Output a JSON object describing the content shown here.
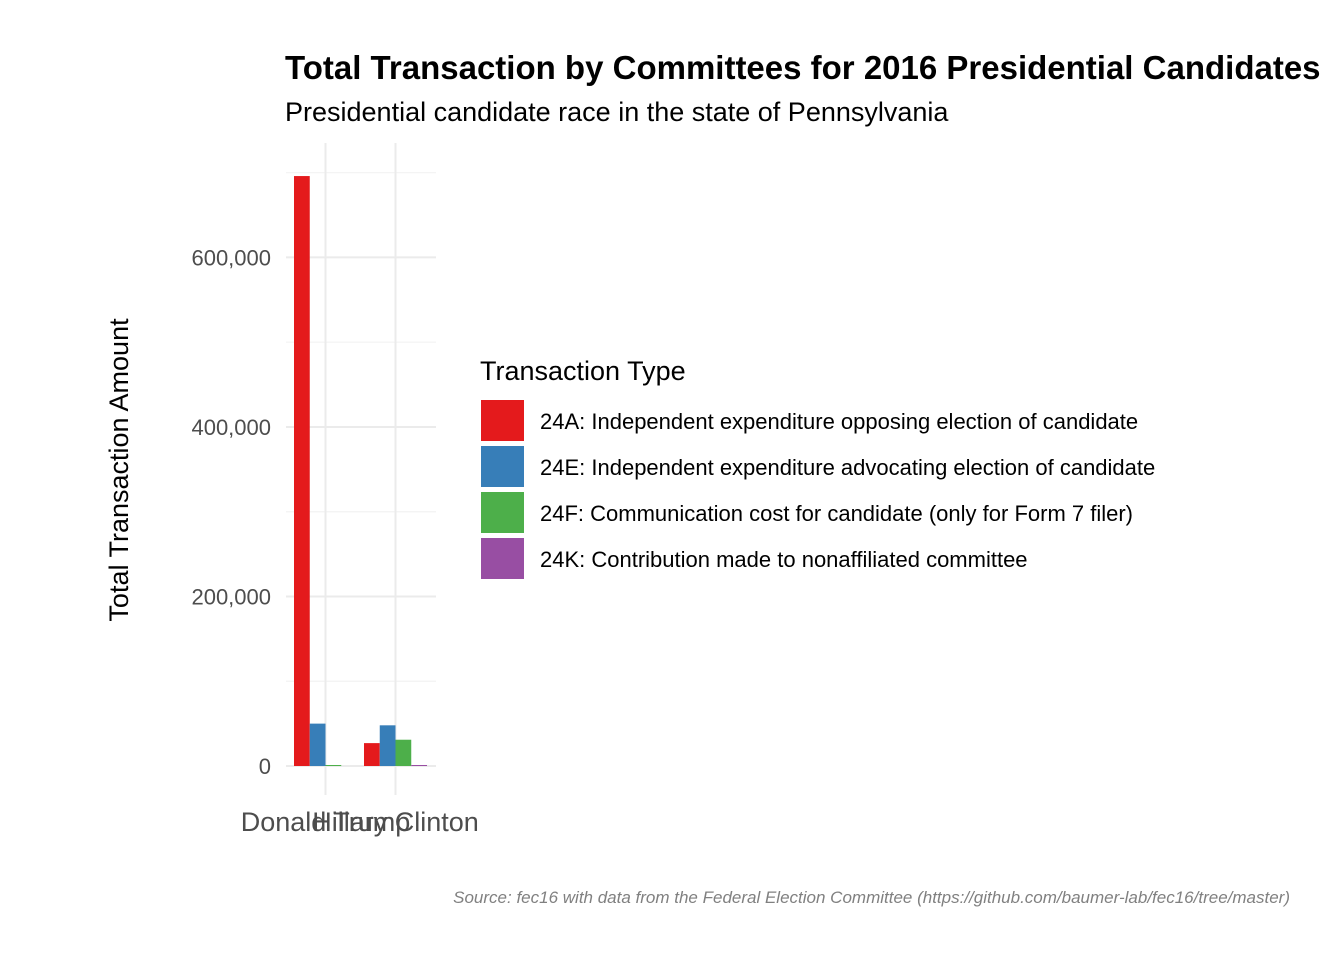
{
  "chart_data": {
    "type": "bar",
    "title": "Total Transaction by Committees for 2016 Presidential Candidates",
    "subtitle": "Presidential candidate race in the state of Pennsylvania",
    "xlabel": "",
    "ylabel": "Total Transaction Amount",
    "categories": [
      "Donald Trump",
      "Hillary Clinton"
    ],
    "series": [
      {
        "name": "24A: Independent expenditure opposing election of candidate",
        "color": "#E41A1C",
        "values": [
          696000,
          27000
        ]
      },
      {
        "name": "24E: Independent expenditure advocating election of candidate",
        "color": "#377EB8",
        "values": [
          50000,
          48000
        ]
      },
      {
        "name": "24F: Communication cost for candidate (only for Form 7 filer)",
        "color": "#4DAF4A",
        "values": [
          1000,
          31000
        ]
      },
      {
        "name": "24K: Contribution made to nonaffiliated committee",
        "color": "#984EA3",
        "values": [
          0,
          1000
        ]
      }
    ],
    "ylim": [
      0,
      735000
    ],
    "yticks": [
      0,
      200000,
      400000,
      600000
    ],
    "ytick_labels": [
      "0",
      "200,000",
      "400,000",
      "600,000"
    ],
    "legend_title": "Transaction Type",
    "legend_position": "right",
    "grid": true,
    "caption": "Source: fec16 with data from the Federal Election Committee (https://github.com/baumer-lab/fec16/tree/master)"
  }
}
